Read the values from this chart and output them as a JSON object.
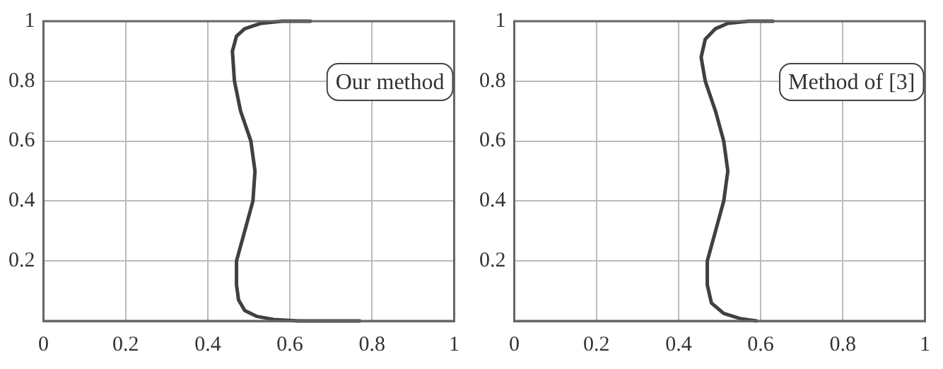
{
  "chart_data": [
    {
      "type": "line",
      "legend": "top right",
      "grid": true,
      "marker": "none",
      "line_style": "solid",
      "xlim": [
        0,
        1
      ],
      "ylim": [
        0,
        1
      ],
      "xticks": [
        0,
        0.2,
        0.4,
        0.6,
        0.8,
        1
      ],
      "yticks": [
        0.2,
        0.4,
        0.6,
        0.8,
        1
      ],
      "series": [
        {
          "name": "Our method",
          "color": "#404040",
          "x": [
            0.77,
            0.62,
            0.56,
            0.52,
            0.49,
            0.475,
            0.47,
            0.47,
            0.49,
            0.51,
            0.515,
            0.505,
            0.48,
            0.465,
            0.46,
            0.47,
            0.49,
            0.53,
            0.58,
            0.65
          ],
          "values": [
            0,
            0,
            0.005,
            0.015,
            0.035,
            0.07,
            0.12,
            0.2,
            0.3,
            0.4,
            0.5,
            0.6,
            0.7,
            0.8,
            0.9,
            0.95,
            0.975,
            0.993,
            1,
            1
          ]
        }
      ]
    },
    {
      "type": "line",
      "legend": "top right",
      "grid": true,
      "marker": "none",
      "line_style": "solid",
      "xlim": [
        0,
        1
      ],
      "ylim": [
        0,
        1
      ],
      "xticks": [
        0,
        0.2,
        0.4,
        0.6,
        0.8,
        1
      ],
      "yticks": [
        0.2,
        0.4,
        0.6,
        0.8,
        1
      ],
      "series": [
        {
          "name": "Method of [3]",
          "color": "#404040",
          "x": [
            0.59,
            0.55,
            0.51,
            0.48,
            0.47,
            0.47,
            0.49,
            0.51,
            0.52,
            0.51,
            0.49,
            0.465,
            0.455,
            0.465,
            0.49,
            0.52,
            0.57,
            0.63
          ],
          "values": [
            0,
            0.008,
            0.025,
            0.06,
            0.12,
            0.2,
            0.3,
            0.4,
            0.5,
            0.6,
            0.7,
            0.8,
            0.88,
            0.94,
            0.975,
            0.993,
            1,
            1
          ]
        }
      ]
    }
  ]
}
